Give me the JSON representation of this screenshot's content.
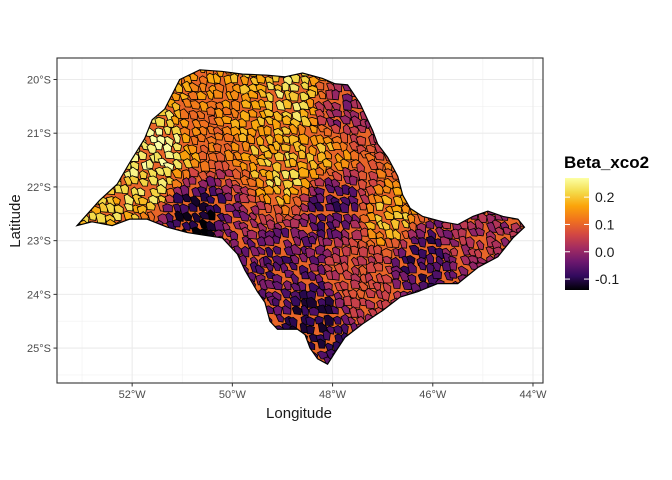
{
  "chart_data": {
    "type": "heatmap",
    "title": "",
    "xlabel": "Longitude",
    "ylabel": "Latitude",
    "xlim": [
      -53.5,
      -43.8
    ],
    "ylim": [
      -25.65,
      -19.6
    ],
    "x_ticks": [
      {
        "value": -52,
        "label": "52°W"
      },
      {
        "value": -50,
        "label": "50°W"
      },
      {
        "value": -48,
        "label": "48°W"
      },
      {
        "value": -46,
        "label": "46°W"
      },
      {
        "value": -44,
        "label": "44°W"
      }
    ],
    "y_ticks": [
      {
        "value": -20,
        "label": "20°S"
      },
      {
        "value": -21,
        "label": "21°S"
      },
      {
        "value": -22,
        "label": "22°S"
      },
      {
        "value": -23,
        "label": "23°S"
      },
      {
        "value": -24,
        "label": "24°S"
      },
      {
        "value": -25,
        "label": "25°S"
      }
    ],
    "grid": true,
    "region_outline": [
      [
        -51.05,
        -20.0
      ],
      [
        -50.65,
        -19.82
      ],
      [
        -50.2,
        -19.85
      ],
      [
        -49.8,
        -19.9
      ],
      [
        -49.3,
        -19.92
      ],
      [
        -48.95,
        -19.95
      ],
      [
        -48.6,
        -19.88
      ],
      [
        -48.2,
        -19.98
      ],
      [
        -47.95,
        -20.08
      ],
      [
        -47.7,
        -20.1
      ],
      [
        -47.45,
        -20.45
      ],
      [
        -47.2,
        -20.95
      ],
      [
        -47.1,
        -21.2
      ],
      [
        -46.9,
        -21.45
      ],
      [
        -46.7,
        -21.8
      ],
      [
        -46.6,
        -22.15
      ],
      [
        -46.45,
        -22.4
      ],
      [
        -46.2,
        -22.55
      ],
      [
        -45.8,
        -22.65
      ],
      [
        -45.5,
        -22.7
      ],
      [
        -45.2,
        -22.55
      ],
      [
        -44.9,
        -22.45
      ],
      [
        -44.6,
        -22.55
      ],
      [
        -44.3,
        -22.6
      ],
      [
        -44.17,
        -22.75
      ],
      [
        -44.4,
        -22.95
      ],
      [
        -44.7,
        -23.3
      ],
      [
        -45.1,
        -23.5
      ],
      [
        -45.5,
        -23.8
      ],
      [
        -45.9,
        -23.8
      ],
      [
        -46.3,
        -23.95
      ],
      [
        -46.65,
        -24.05
      ],
      [
        -47.0,
        -24.3
      ],
      [
        -47.4,
        -24.55
      ],
      [
        -47.75,
        -24.8
      ],
      [
        -47.95,
        -25.08
      ],
      [
        -48.1,
        -25.3
      ],
      [
        -48.3,
        -25.2
      ],
      [
        -48.45,
        -25.0
      ],
      [
        -48.55,
        -24.75
      ],
      [
        -48.7,
        -24.65
      ],
      [
        -49.1,
        -24.65
      ],
      [
        -49.25,
        -24.5
      ],
      [
        -49.35,
        -24.15
      ],
      [
        -49.5,
        -23.95
      ],
      [
        -49.75,
        -23.55
      ],
      [
        -49.9,
        -23.25
      ],
      [
        -50.2,
        -22.95
      ],
      [
        -50.55,
        -22.9
      ],
      [
        -50.9,
        -22.85
      ],
      [
        -51.3,
        -22.75
      ],
      [
        -51.7,
        -22.6
      ],
      [
        -52.05,
        -22.6
      ],
      [
        -52.4,
        -22.72
      ],
      [
        -52.8,
        -22.65
      ],
      [
        -53.1,
        -22.72
      ],
      [
        -52.65,
        -22.25
      ],
      [
        -52.3,
        -21.95
      ],
      [
        -52.05,
        -21.55
      ],
      [
        -51.75,
        -21.1
      ],
      [
        -51.6,
        -20.75
      ],
      [
        -51.35,
        -20.55
      ],
      [
        -51.05,
        -20.0
      ]
    ],
    "color_scale": {
      "name": "Beta_xco2",
      "domain": [
        -0.14,
        0.27
      ],
      "stops": [
        "#000004",
        "#320a5e",
        "#6b176e",
        "#a32c61",
        "#d44842",
        "#f1731d",
        "#fba40a",
        "#f4db4b",
        "#fcffa4"
      ]
    },
    "legend": {
      "title": "Beta_xco2",
      "ticks": [
        {
          "value": 0.2,
          "label": "0.2"
        },
        {
          "value": 0.1,
          "label": "0.1"
        },
        {
          "value": 0.0,
          "label": "0.0"
        },
        {
          "value": -0.1,
          "label": "-0.1"
        }
      ],
      "placement": "right"
    },
    "values_approx": [
      {
        "lon": -52.7,
        "lat": -22.5,
        "value": 0.2
      },
      {
        "lon": -51.6,
        "lat": -21.2,
        "value": 0.26
      },
      {
        "lon": -51.8,
        "lat": -21.9,
        "value": 0.22
      },
      {
        "lon": -51.0,
        "lat": -22.45,
        "value": -0.1
      },
      {
        "lon": -50.6,
        "lat": -22.75,
        "value": -0.14
      },
      {
        "lon": -50.2,
        "lat": -22.9,
        "value": 0.0
      },
      {
        "lon": -49.5,
        "lat": -20.7,
        "value": 0.18
      },
      {
        "lon": -49.0,
        "lat": -20.3,
        "value": 0.22
      },
      {
        "lon": -49.0,
        "lat": -21.6,
        "value": 0.21
      },
      {
        "lon": -48.2,
        "lat": -21.2,
        "value": 0.17
      },
      {
        "lon": -47.9,
        "lat": -20.6,
        "value": 0.0
      },
      {
        "lon": -48.1,
        "lat": -22.2,
        "value": -0.07
      },
      {
        "lon": -49.3,
        "lat": -23.4,
        "value": -0.05
      },
      {
        "lon": -48.5,
        "lat": -24.4,
        "value": -0.09
      },
      {
        "lon": -46.9,
        "lat": -22.5,
        "value": 0.18
      },
      {
        "lon": -46.3,
        "lat": -23.2,
        "value": -0.08
      },
      {
        "lon": -45.4,
        "lat": -23.0,
        "value": 0.02
      },
      {
        "lon": -50.5,
        "lat": -20.8,
        "value": 0.12
      },
      {
        "lon": -47.5,
        "lat": -23.6,
        "value": 0.06
      }
    ]
  }
}
